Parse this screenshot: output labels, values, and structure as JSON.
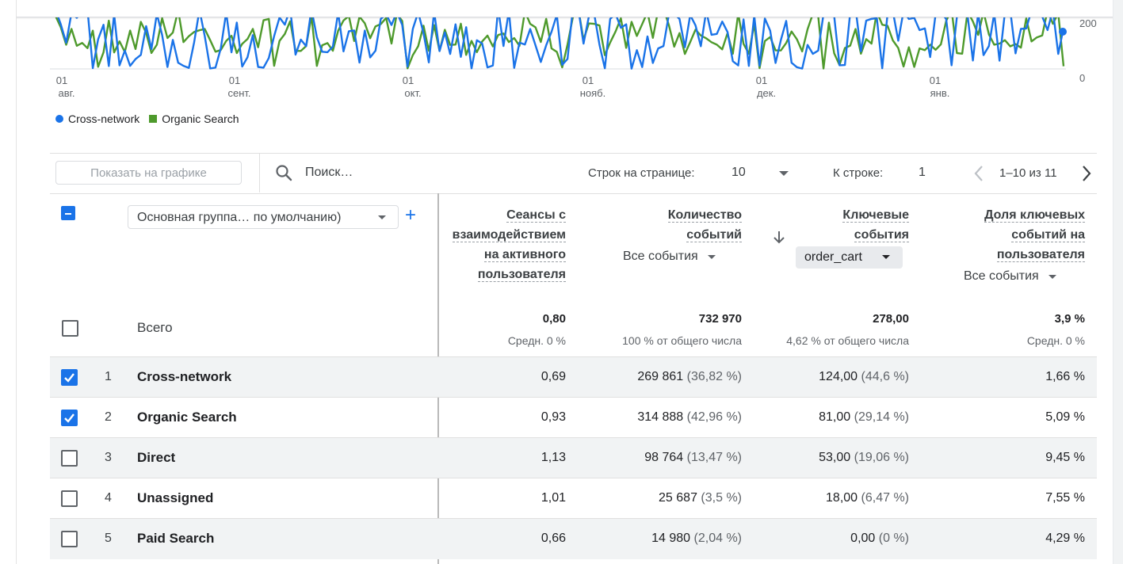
{
  "chart_data": {
    "type": "line",
    "x_ticks": [
      {
        "day": "01",
        "month": "авг."
      },
      {
        "day": "01",
        "month": "сент."
      },
      {
        "day": "01",
        "month": "окт."
      },
      {
        "day": "01",
        "month": "нояб."
      },
      {
        "day": "01",
        "month": "дек."
      },
      {
        "day": "01",
        "month": "янв."
      }
    ],
    "y_ticks": [
      "200",
      "0"
    ],
    "series": [
      {
        "name": "Cross-network",
        "color": "#1a73e8"
      },
      {
        "name": "Organic Search",
        "color": "#4e9a2c"
      }
    ],
    "legend_position": "bottom-left"
  },
  "toolbar": {
    "plot_button": "Показать на графике",
    "search_placeholder": "Поиск…",
    "rows_per_page_label": "Строк на странице:",
    "rows_per_page_value": "10",
    "go_to_row_label": "К строке:",
    "go_to_row_value": "1",
    "pagination": "1–10 из 11"
  },
  "table": {
    "dimension_select": "Основная группа… по умолчанию)",
    "columns": [
      {
        "title_lines": [
          "Сеансы с",
          "взаимодействием",
          "на активного",
          "пользователя"
        ],
        "filter": ""
      },
      {
        "title_lines": [
          "Количество",
          "событий"
        ],
        "filter": "Все события"
      },
      {
        "title_lines": [
          "Ключевые",
          "события"
        ],
        "filter": "order_cart"
      },
      {
        "title_lines": [
          "Доля ключевых",
          "событий на",
          "пользователя"
        ],
        "filter": "Все события"
      }
    ],
    "totals": {
      "label": "Всего",
      "values": [
        "0,80",
        "732 970",
        "278,00",
        "3,9 %"
      ],
      "subs": [
        "Средн. 0 %",
        "100 % от общего числа",
        "4,62 % от общего числа",
        "Средн. 0 %"
      ]
    },
    "rows": [
      {
        "index": "1",
        "name": "Cross-network",
        "checked": true,
        "c1": "0,69",
        "c2": "269 861",
        "c2p": "(36,82 %)",
        "c3": "124,00",
        "c3p": "(44,6 %)",
        "c4": "1,66 %"
      },
      {
        "index": "2",
        "name": "Organic Search",
        "checked": true,
        "c1": "0,93",
        "c2": "314 888",
        "c2p": "(42,96 %)",
        "c3": "81,00",
        "c3p": "(29,14 %)",
        "c4": "5,09 %"
      },
      {
        "index": "3",
        "name": "Direct",
        "checked": false,
        "c1": "1,13",
        "c2": "98 764",
        "c2p": "(13,47 %)",
        "c3": "53,00",
        "c3p": "(19,06 %)",
        "c4": "9,45 %"
      },
      {
        "index": "4",
        "name": "Unassigned",
        "checked": false,
        "c1": "1,01",
        "c2": "25 687",
        "c2p": "(3,5 %)",
        "c3": "18,00",
        "c3p": "(6,47 %)",
        "c4": "7,55 %"
      },
      {
        "index": "5",
        "name": "Paid Search",
        "checked": false,
        "c1": "0,66",
        "c2": "14 980",
        "c2p": "(2,04 %)",
        "c3": "0,00",
        "c3p": "(0 %)",
        "c4": "4,29 %"
      }
    ]
  }
}
